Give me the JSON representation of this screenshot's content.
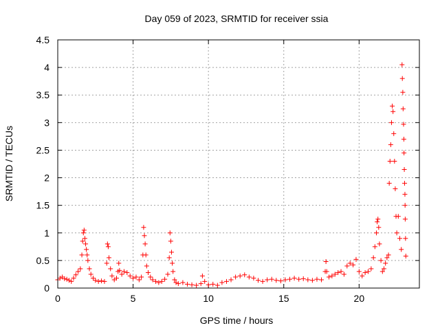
{
  "chart_data": {
    "type": "scatter",
    "title": "Day 059 of 2023, SRMTID for receiver ssia",
    "xlabel": "GPS time / hours",
    "ylabel": "SRMTID / TECUs",
    "xlim": [
      0,
      24
    ],
    "ylim": [
      0,
      4.5
    ],
    "xticks": [
      0,
      5,
      10,
      15,
      20
    ],
    "xtick_labels": [
      "0",
      "5",
      "10",
      "15",
      "20"
    ],
    "yticks": [
      0,
      0.5,
      1,
      1.5,
      2,
      2.5,
      3,
      3.5,
      4,
      4.5
    ],
    "ytick_labels": [
      "0",
      "0.5",
      "1",
      "1.5",
      "2",
      "2.5",
      "3",
      "3.5",
      "4",
      "4.5"
    ],
    "grid": true,
    "marker": "+",
    "color": "#ff0000",
    "series": [
      {
        "name": "SRMTID",
        "points": [
          [
            0.0,
            0.15
          ],
          [
            0.15,
            0.18
          ],
          [
            0.3,
            0.2
          ],
          [
            0.45,
            0.17
          ],
          [
            0.6,
            0.16
          ],
          [
            0.75,
            0.14
          ],
          [
            0.9,
            0.12
          ],
          [
            1.05,
            0.18
          ],
          [
            1.2,
            0.24
          ],
          [
            1.35,
            0.3
          ],
          [
            1.5,
            0.35
          ],
          [
            1.6,
            0.6
          ],
          [
            1.65,
            0.85
          ],
          [
            1.7,
            1.0
          ],
          [
            1.75,
            1.05
          ],
          [
            1.8,
            0.9
          ],
          [
            1.85,
            0.8
          ],
          [
            1.9,
            0.7
          ],
          [
            1.95,
            0.6
          ],
          [
            2.0,
            0.5
          ],
          [
            2.1,
            0.35
          ],
          [
            2.2,
            0.25
          ],
          [
            2.35,
            0.18
          ],
          [
            2.5,
            0.14
          ],
          [
            2.7,
            0.12
          ],
          [
            2.9,
            0.13
          ],
          [
            3.1,
            0.12
          ],
          [
            3.25,
            0.45
          ],
          [
            3.3,
            0.8
          ],
          [
            3.35,
            0.75
          ],
          [
            3.4,
            0.55
          ],
          [
            3.5,
            0.35
          ],
          [
            3.6,
            0.22
          ],
          [
            3.75,
            0.15
          ],
          [
            3.9,
            0.18
          ],
          [
            4.0,
            0.3
          ],
          [
            4.05,
            0.45
          ],
          [
            4.1,
            0.32
          ],
          [
            4.25,
            0.25
          ],
          [
            4.4,
            0.3
          ],
          [
            4.6,
            0.28
          ],
          [
            4.8,
            0.22
          ],
          [
            5.0,
            0.18
          ],
          [
            5.2,
            0.2
          ],
          [
            5.4,
            0.15
          ],
          [
            5.55,
            0.2
          ],
          [
            5.65,
            0.6
          ],
          [
            5.7,
            1.1
          ],
          [
            5.75,
            0.95
          ],
          [
            5.8,
            0.8
          ],
          [
            5.85,
            0.6
          ],
          [
            5.9,
            0.4
          ],
          [
            6.0,
            0.28
          ],
          [
            6.15,
            0.2
          ],
          [
            6.3,
            0.15
          ],
          [
            6.5,
            0.12
          ],
          [
            6.7,
            0.1
          ],
          [
            6.9,
            0.12
          ],
          [
            7.1,
            0.16
          ],
          [
            7.3,
            0.25
          ],
          [
            7.4,
            0.55
          ],
          [
            7.45,
            1.0
          ],
          [
            7.5,
            0.85
          ],
          [
            7.55,
            0.65
          ],
          [
            7.6,
            0.45
          ],
          [
            7.65,
            0.3
          ],
          [
            7.75,
            0.15
          ],
          [
            7.85,
            0.1
          ],
          [
            8.0,
            0.08
          ],
          [
            8.3,
            0.1
          ],
          [
            8.6,
            0.07
          ],
          [
            8.9,
            0.06
          ],
          [
            9.2,
            0.05
          ],
          [
            9.5,
            0.08
          ],
          [
            9.6,
            0.22
          ],
          [
            9.75,
            0.12
          ],
          [
            10.0,
            0.06
          ],
          [
            10.3,
            0.07
          ],
          [
            10.6,
            0.05
          ],
          [
            10.9,
            0.1
          ],
          [
            11.2,
            0.12
          ],
          [
            11.5,
            0.15
          ],
          [
            11.8,
            0.2
          ],
          [
            12.1,
            0.22
          ],
          [
            12.4,
            0.24
          ],
          [
            12.7,
            0.2
          ],
          [
            13.0,
            0.18
          ],
          [
            13.3,
            0.14
          ],
          [
            13.6,
            0.12
          ],
          [
            13.9,
            0.15
          ],
          [
            14.2,
            0.16
          ],
          [
            14.5,
            0.14
          ],
          [
            14.8,
            0.13
          ],
          [
            15.1,
            0.15
          ],
          [
            15.4,
            0.16
          ],
          [
            15.7,
            0.18
          ],
          [
            16.0,
            0.16
          ],
          [
            16.3,
            0.17
          ],
          [
            16.6,
            0.15
          ],
          [
            16.9,
            0.14
          ],
          [
            17.2,
            0.16
          ],
          [
            17.5,
            0.15
          ],
          [
            17.75,
            0.3
          ],
          [
            17.8,
            0.48
          ],
          [
            17.85,
            0.3
          ],
          [
            18.0,
            0.2
          ],
          [
            18.2,
            0.22
          ],
          [
            18.4,
            0.25
          ],
          [
            18.6,
            0.28
          ],
          [
            18.8,
            0.3
          ],
          [
            19.0,
            0.25
          ],
          [
            19.2,
            0.4
          ],
          [
            19.4,
            0.45
          ],
          [
            19.6,
            0.42
          ],
          [
            19.8,
            0.52
          ],
          [
            20.0,
            0.3
          ],
          [
            20.2,
            0.22
          ],
          [
            20.4,
            0.28
          ],
          [
            20.6,
            0.3
          ],
          [
            20.8,
            0.35
          ],
          [
            20.95,
            0.55
          ],
          [
            21.05,
            0.75
          ],
          [
            21.15,
            1.0
          ],
          [
            21.2,
            1.2
          ],
          [
            21.25,
            1.25
          ],
          [
            21.3,
            1.1
          ],
          [
            21.35,
            0.8
          ],
          [
            21.45,
            0.5
          ],
          [
            21.55,
            0.3
          ],
          [
            21.65,
            0.35
          ],
          [
            21.75,
            0.45
          ],
          [
            21.85,
            0.55
          ],
          [
            21.95,
            0.6
          ],
          [
            22.0,
            1.9
          ],
          [
            22.05,
            2.3
          ],
          [
            22.1,
            2.6
          ],
          [
            22.15,
            3.0
          ],
          [
            22.2,
            3.3
          ],
          [
            22.25,
            3.2
          ],
          [
            22.3,
            2.8
          ],
          [
            22.35,
            2.3
          ],
          [
            22.4,
            1.8
          ],
          [
            22.45,
            1.3
          ],
          [
            22.5,
            1.0
          ],
          [
            22.6,
            1.3
          ],
          [
            22.7,
            0.9
          ],
          [
            22.8,
            0.7
          ],
          [
            22.85,
            4.05
          ],
          [
            22.87,
            3.8
          ],
          [
            22.9,
            3.55
          ],
          [
            22.92,
            3.25
          ],
          [
            22.95,
            2.97
          ],
          [
            22.97,
            2.7
          ],
          [
            22.98,
            2.45
          ],
          [
            23.0,
            2.15
          ],
          [
            23.02,
            1.9
          ],
          [
            23.04,
            1.7
          ],
          [
            23.05,
            1.5
          ],
          [
            23.06,
            1.25
          ],
          [
            23.08,
            0.9
          ],
          [
            23.1,
            0.58
          ]
        ]
      }
    ]
  }
}
